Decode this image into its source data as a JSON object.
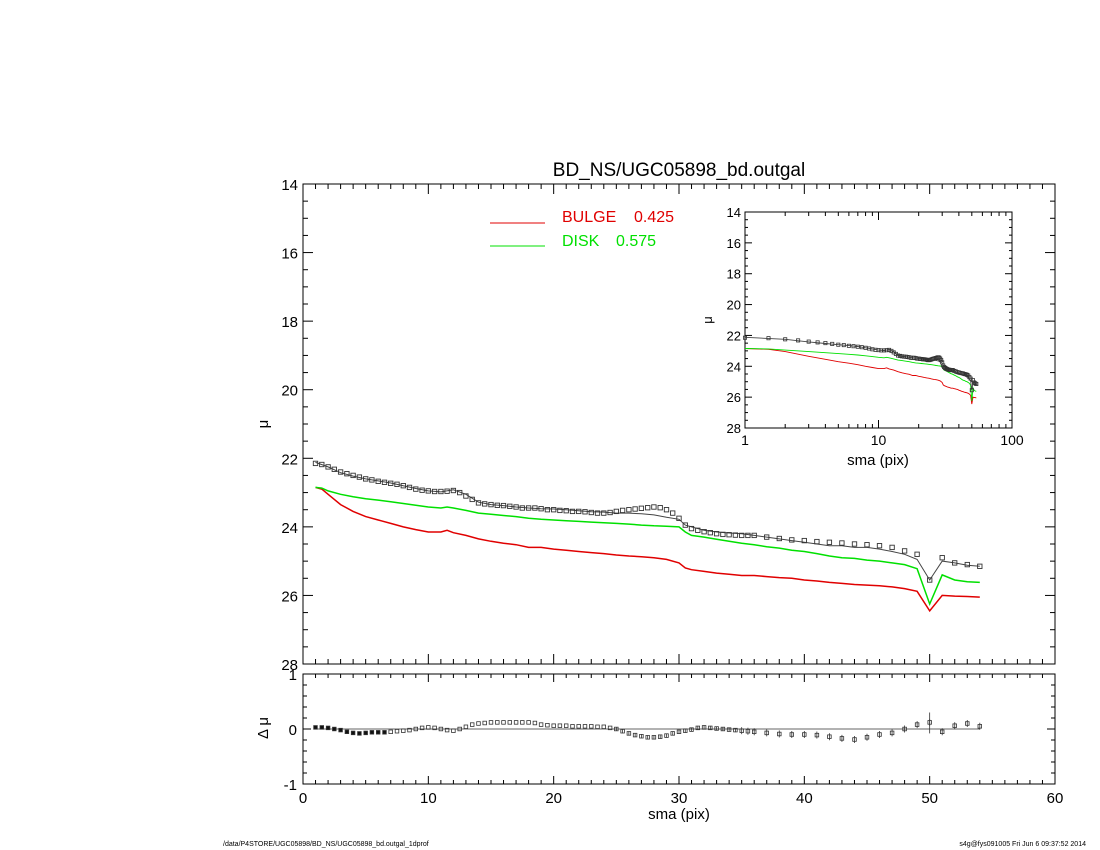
{
  "chart_data": {
    "type": "line",
    "title": "BD_NS/UGC05898_bd.outgal",
    "main": {
      "xlabel": "sma (pix)",
      "ylabel": "μ",
      "xlim": [
        0,
        60
      ],
      "ylim": [
        28,
        14
      ],
      "xticks": [
        "0",
        "10",
        "20",
        "30",
        "40",
        "50",
        "60"
      ],
      "yticks": [
        "14",
        "16",
        "18",
        "20",
        "22",
        "24",
        "26",
        "28"
      ],
      "legend_position": "top-center",
      "legend": [
        {
          "label": "BULGE",
          "value": "0.425",
          "color": "#e00000"
        },
        {
          "label": "DISK",
          "value": "0.575",
          "color": "#00e000"
        }
      ],
      "data_points": {
        "x": [
          1,
          1.5,
          2,
          2.5,
          3,
          3.5,
          4,
          4.5,
          5,
          5.5,
          6,
          6.5,
          7,
          7.5,
          8,
          8.5,
          9,
          9.5,
          10,
          10.5,
          11,
          11.5,
          12,
          12.5,
          13,
          13.5,
          14,
          14.5,
          15,
          15.5,
          16,
          16.5,
          17,
          17.5,
          18,
          18.5,
          19,
          19.5,
          20,
          20.5,
          21,
          21.5,
          22,
          22.5,
          23,
          23.5,
          24,
          24.5,
          25,
          25.5,
          26,
          26.5,
          27,
          27.5,
          28,
          28.5,
          29,
          29.5,
          30,
          30.5,
          31,
          31.5,
          32,
          32.5,
          33,
          33.5,
          34,
          34.5,
          35,
          35.5,
          36,
          37,
          38,
          39,
          40,
          41,
          42,
          43,
          44,
          45,
          46,
          47,
          48,
          49,
          50,
          51,
          52,
          53,
          54
        ],
        "y": [
          22.15,
          22.18,
          22.25,
          22.32,
          22.4,
          22.45,
          22.5,
          22.55,
          22.6,
          22.63,
          22.67,
          22.7,
          22.73,
          22.76,
          22.8,
          22.85,
          22.9,
          22.93,
          22.95,
          22.97,
          22.97,
          22.96,
          22.94,
          23.0,
          23.1,
          23.2,
          23.3,
          23.33,
          23.35,
          23.37,
          23.38,
          23.4,
          23.42,
          23.45,
          23.45,
          23.45,
          23.47,
          23.5,
          23.5,
          23.52,
          23.53,
          23.55,
          23.55,
          23.56,
          23.58,
          23.6,
          23.6,
          23.58,
          23.55,
          23.52,
          23.5,
          23.48,
          23.46,
          23.44,
          23.42,
          23.44,
          23.5,
          23.6,
          23.75,
          23.95,
          24.05,
          24.1,
          24.14,
          24.17,
          24.2,
          24.22,
          24.23,
          24.24,
          24.25,
          24.25,
          24.25,
          24.3,
          24.34,
          24.38,
          24.4,
          24.43,
          24.45,
          24.47,
          24.5,
          24.52,
          24.55,
          24.6,
          24.7,
          24.8,
          25.55,
          24.9,
          25.05,
          25.1,
          25.15
        ]
      },
      "model": {
        "x": [
          1,
          2,
          3,
          4,
          5,
          6,
          7,
          8,
          9,
          10,
          11,
          12,
          13,
          14,
          15,
          16,
          17,
          18,
          19,
          20,
          21,
          22,
          23,
          24,
          25,
          26,
          27,
          28,
          29,
          30,
          30.5,
          31,
          32,
          33,
          34,
          35,
          36,
          37,
          38,
          39,
          40,
          41,
          42,
          43,
          44,
          45,
          46,
          47,
          48,
          49,
          50,
          51,
          52,
          53,
          54
        ],
        "y": [
          22.12,
          22.25,
          22.42,
          22.52,
          22.6,
          22.66,
          22.72,
          22.8,
          22.88,
          22.95,
          22.98,
          22.92,
          23.05,
          23.28,
          23.35,
          23.38,
          23.42,
          23.45,
          23.47,
          23.48,
          23.5,
          23.53,
          23.56,
          23.57,
          23.6,
          23.6,
          23.62,
          23.65,
          23.72,
          23.78,
          23.95,
          24.0,
          24.1,
          24.15,
          24.18,
          24.2,
          24.25,
          24.3,
          24.35,
          24.4,
          24.45,
          24.5,
          24.55,
          24.55,
          24.6,
          24.6,
          24.65,
          24.72,
          24.8,
          24.95,
          25.55,
          25.0,
          25.05,
          25.12,
          25.15
        ]
      },
      "bulge": {
        "x": [
          1,
          1.5,
          2,
          3,
          4,
          5,
          6,
          7,
          8,
          9,
          10,
          11,
          11.5,
          12,
          13,
          14,
          15,
          16,
          17,
          18,
          19,
          20,
          21,
          22,
          23,
          24,
          25,
          26,
          27,
          28,
          29,
          30,
          30.5,
          31,
          32,
          33,
          34,
          35,
          36,
          37,
          38,
          39,
          40,
          41,
          42,
          43,
          44,
          45,
          46,
          47,
          48,
          49,
          50,
          51,
          52,
          53,
          54
        ],
        "y": [
          22.85,
          22.9,
          23.05,
          23.35,
          23.55,
          23.7,
          23.8,
          23.9,
          24.0,
          24.08,
          24.15,
          24.15,
          24.1,
          24.17,
          24.25,
          24.35,
          24.42,
          24.48,
          24.52,
          24.6,
          24.6,
          24.65,
          24.68,
          24.72,
          24.75,
          24.78,
          24.82,
          24.85,
          24.87,
          24.9,
          24.95,
          25.05,
          25.2,
          25.25,
          25.3,
          25.35,
          25.38,
          25.42,
          25.42,
          25.45,
          25.48,
          25.5,
          25.55,
          25.58,
          25.62,
          25.65,
          25.68,
          25.7,
          25.72,
          25.75,
          25.8,
          25.88,
          26.45,
          26.0,
          26.02,
          26.03,
          26.05
        ]
      },
      "disk": {
        "x": [
          1,
          1.5,
          2,
          3,
          4,
          5,
          6,
          7,
          8,
          9,
          10,
          11,
          11.5,
          12,
          13,
          14,
          15,
          16,
          17,
          18,
          19,
          20,
          21,
          22,
          23,
          24,
          25,
          26,
          27,
          28,
          29,
          30,
          30.5,
          31,
          32,
          33,
          34,
          35,
          36,
          37,
          38,
          39,
          40,
          41,
          42,
          43,
          44,
          45,
          46,
          47,
          48,
          49,
          50,
          51,
          52,
          53,
          54
        ],
        "y": [
          22.85,
          22.87,
          22.95,
          23.05,
          23.12,
          23.18,
          23.22,
          23.27,
          23.32,
          23.37,
          23.42,
          23.45,
          23.42,
          23.45,
          23.52,
          23.6,
          23.63,
          23.67,
          23.7,
          23.75,
          23.78,
          23.8,
          23.82,
          23.84,
          23.86,
          23.88,
          23.9,
          23.92,
          23.95,
          23.97,
          23.98,
          24.0,
          24.15,
          24.25,
          24.3,
          24.36,
          24.42,
          24.48,
          24.52,
          24.58,
          24.62,
          24.68,
          24.72,
          24.78,
          24.85,
          24.9,
          24.92,
          24.97,
          25.0,
          25.05,
          25.1,
          25.22,
          26.25,
          25.4,
          25.55,
          25.6,
          25.62
        ]
      }
    },
    "inset": {
      "xlabel": "sma (pix)",
      "ylabel": "μ",
      "scale_x": "log",
      "xlim": [
        1,
        100
      ],
      "ylim": [
        28,
        14
      ],
      "xticks": [
        "1",
        "10",
        "100"
      ],
      "yticks": [
        "14",
        "16",
        "18",
        "20",
        "22",
        "24",
        "26",
        "28"
      ]
    },
    "residual": {
      "xlabel": "sma (pix)",
      "ylabel": "Δ μ",
      "xlim": [
        0,
        60
      ],
      "ylim": [
        -1,
        1
      ],
      "yticks": [
        "1",
        "0",
        "-1"
      ],
      "xticks": [
        "0",
        "10",
        "20",
        "30",
        "40",
        "50",
        "60"
      ],
      "x": [
        1,
        1.5,
        2,
        2.5,
        3,
        3.5,
        4,
        4.5,
        5,
        5.5,
        6,
        6.5,
        7,
        7.5,
        8,
        8.5,
        9,
        9.5,
        10,
        10.5,
        11,
        11.5,
        12,
        12.5,
        13,
        13.5,
        14,
        14.5,
        15,
        15.5,
        16,
        16.5,
        17,
        17.5,
        18,
        18.5,
        19,
        19.5,
        20,
        20.5,
        21,
        21.5,
        22,
        22.5,
        23,
        23.5,
        24,
        24.5,
        25,
        25.5,
        26,
        26.5,
        27,
        27.5,
        28,
        28.5,
        29,
        29.5,
        30,
        30.5,
        31,
        31.5,
        32,
        32.5,
        33,
        33.5,
        34,
        34.5,
        35,
        35.5,
        36,
        37,
        38,
        39,
        40,
        41,
        42,
        43,
        44,
        45,
        46,
        47,
        48,
        49,
        50,
        51,
        52,
        53,
        54
      ],
      "y": [
        0.03,
        0.03,
        0.02,
        0.0,
        -0.02,
        -0.05,
        -0.07,
        -0.08,
        -0.07,
        -0.06,
        -0.06,
        -0.06,
        -0.05,
        -0.04,
        -0.03,
        -0.02,
        0.0,
        0.02,
        0.03,
        0.02,
        0.0,
        -0.02,
        -0.03,
        0.0,
        0.04,
        0.08,
        0.1,
        0.11,
        0.12,
        0.12,
        0.12,
        0.12,
        0.12,
        0.12,
        0.12,
        0.11,
        0.08,
        0.07,
        0.06,
        0.06,
        0.06,
        0.05,
        0.05,
        0.05,
        0.05,
        0.04,
        0.04,
        0.02,
        0.0,
        -0.04,
        -0.08,
        -0.11,
        -0.13,
        -0.15,
        -0.15,
        -0.14,
        -0.12,
        -0.08,
        -0.05,
        -0.03,
        -0.01,
        0.02,
        0.03,
        0.02,
        0.01,
        0.0,
        -0.01,
        -0.02,
        -0.03,
        -0.04,
        -0.05,
        -0.07,
        -0.09,
        -0.1,
        -0.1,
        -0.11,
        -0.14,
        -0.17,
        -0.19,
        -0.15,
        -0.1,
        -0.07,
        0.0,
        0.08,
        0.12,
        -0.05,
        0.06,
        0.1,
        0.05
      ]
    }
  },
  "footer": {
    "left": "/data/P4STORE/UGC05898/BD_NS/UGC05898_bd.outgal_1dprof",
    "right": "s4g@fys091005  Fri Jun  6 09:37:52 2014"
  },
  "colors": {
    "bulge": "#e00000",
    "disk": "#00e000",
    "axes": "#000000",
    "model": "#444444",
    "data": "#333333"
  }
}
